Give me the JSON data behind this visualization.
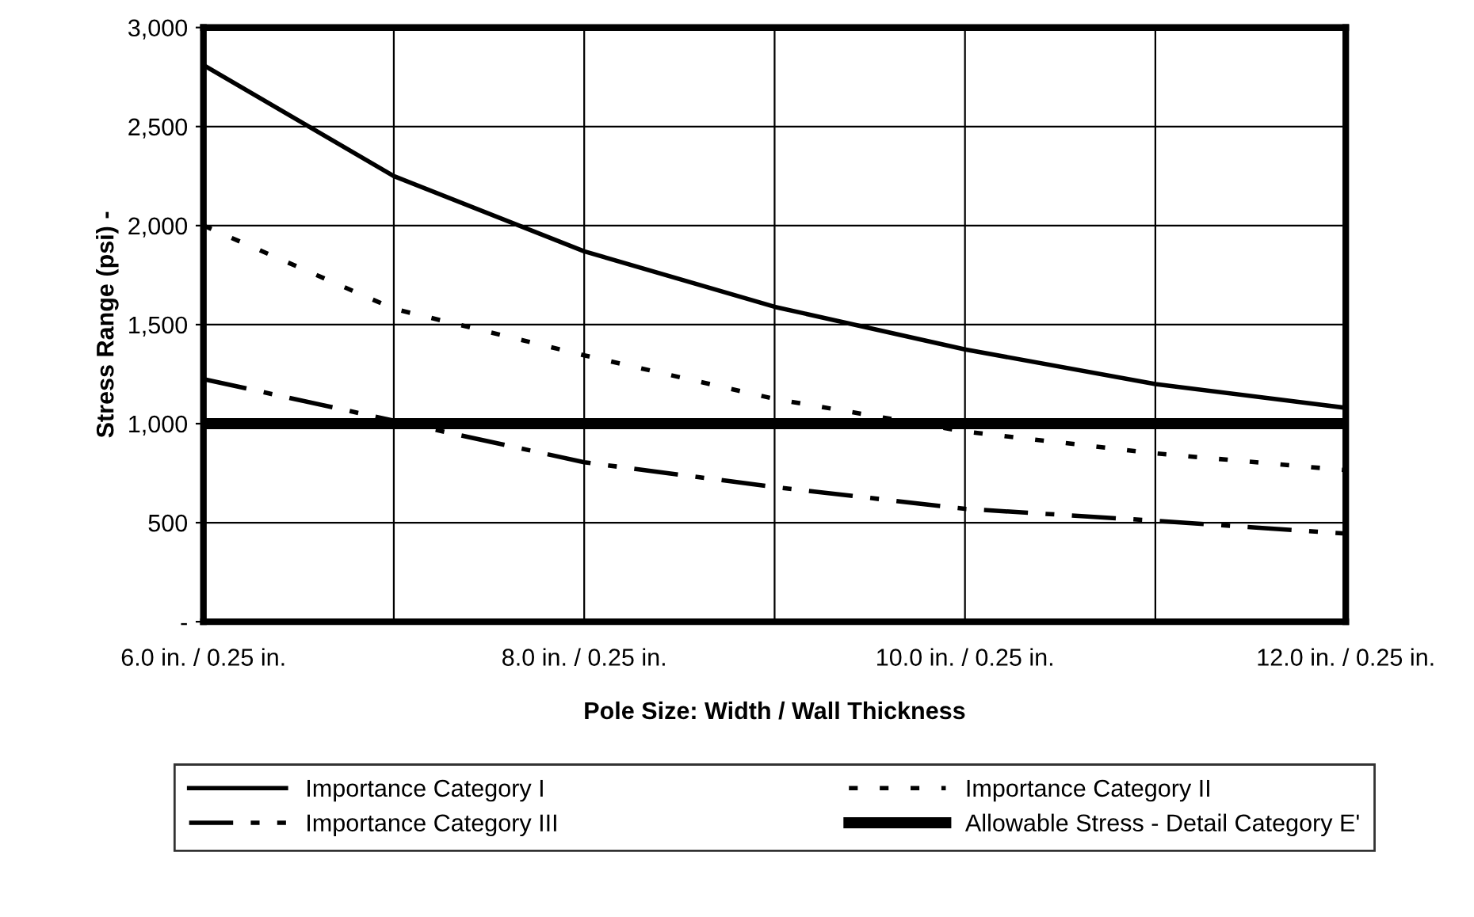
{
  "chart_data": {
    "type": "line",
    "xlabel": "Pole Size: Width / Wall Thickness",
    "ylabel": "Stress Range (psi) -",
    "categories": [
      "6.0 in. / 0.25 in.",
      null,
      "8.0 in. / 0.25 in.",
      null,
      "10.0 in. / 0.25 in.",
      null,
      "12.0 in. / 0.25 in."
    ],
    "series": [
      {
        "name": "Importance Category I",
        "color": "#000000",
        "line_style": "solid",
        "values": [
          2810,
          2250,
          1870,
          1590,
          1375,
          1200,
          1080
        ]
      },
      {
        "name": "Importance Category III",
        "color": "#000000",
        "line_style": "dashdot",
        "values": [
          1225,
          1015,
          805,
          680,
          570,
          510,
          445
        ]
      },
      {
        "name": "Importance Category II",
        "color": "#000000",
        "line_style": "dotted",
        "values": [
          2000,
          1580,
          1345,
          1125,
          960,
          850,
          765
        ]
      }
    ],
    "ref_lines": [
      {
        "axis": "y",
        "value": 1000,
        "label": "Allowable Stress - Detail Category E'",
        "color": "#000000",
        "line_style": "solid"
      }
    ],
    "ylim": [
      0,
      3000
    ],
    "yticks": [
      {
        "value": 0,
        "label": "-"
      },
      {
        "value": 500,
        "label": "500"
      },
      {
        "value": 1000,
        "label": "1,000"
      },
      {
        "value": 1500,
        "label": "1,500"
      },
      {
        "value": 2000,
        "label": "2,000"
      },
      {
        "value": 2500,
        "label": "2,500"
      },
      {
        "value": 3000,
        "label": "3,000"
      }
    ],
    "grid": true,
    "legend": "bottom",
    "marker": "none"
  }
}
